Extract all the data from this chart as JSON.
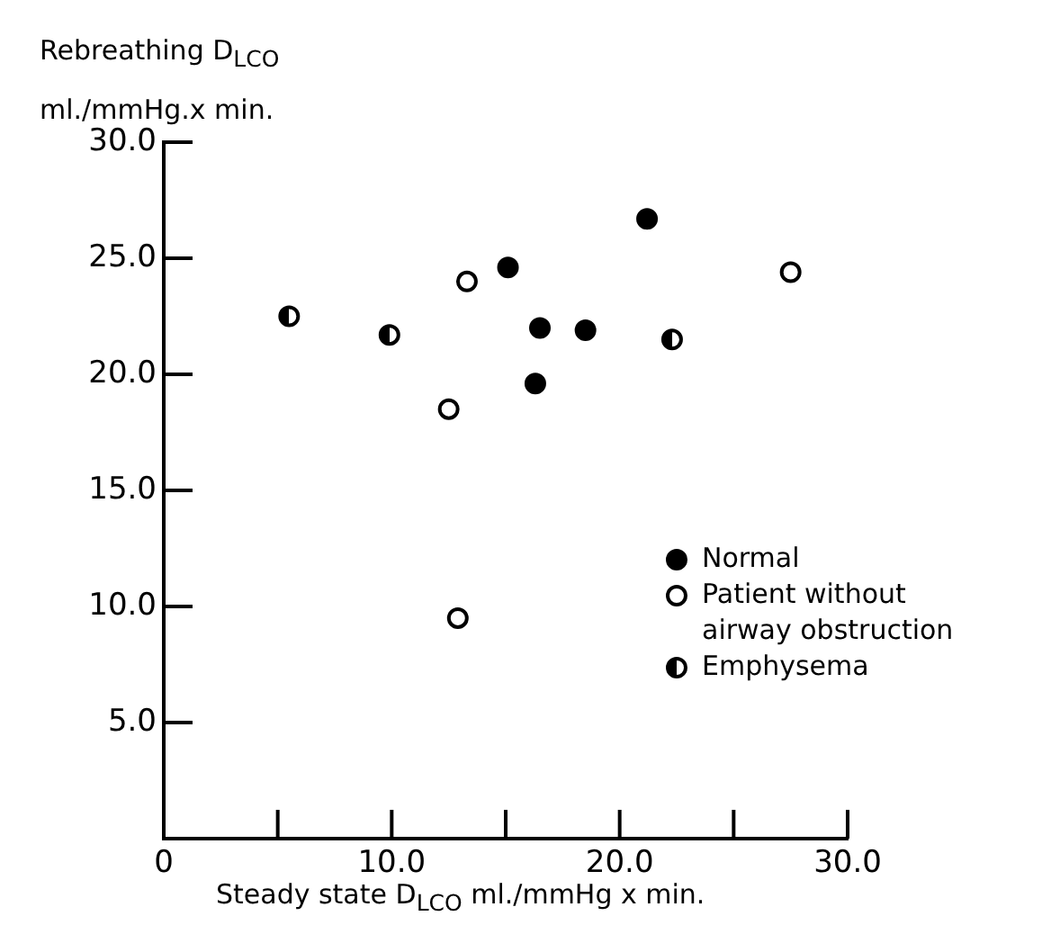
{
  "chart_data": {
    "type": "scatter",
    "xlabel": "Steady state D$_{LCO}$  ml./mmHg  x min.",
    "ylabel": "Rebreathing  D$_{LCO}$ ml./mmHg.x min.",
    "xlim": [
      0,
      30
    ],
    "ylim": [
      0,
      30
    ],
    "xticks": [
      0,
      {
        "value": 5,
        "label": null
      },
      {
        "value": 10,
        "label": "10.0"
      },
      {
        "value": 15,
        "label": null
      },
      {
        "value": 20,
        "label": "20.0"
      },
      {
        "value": 25,
        "label": null
      },
      {
        "value": 30,
        "label": "30.0"
      }
    ],
    "yticks": [
      {
        "value": 5,
        "label": "5.0"
      },
      {
        "value": 10,
        "label": "10.0"
      },
      {
        "value": 15,
        "label": "15.0"
      },
      {
        "value": 20,
        "label": "20.0"
      },
      {
        "value": 25,
        "label": "25.0"
      },
      {
        "value": 30,
        "label": "30.0"
      }
    ],
    "grid": false,
    "legend": "right",
    "marker": "circle",
    "series": [
      {
        "name": "Normal",
        "color": "#000000",
        "x": [
          15.1,
          21.2,
          16.5,
          18.5,
          16.3
        ],
        "values": [
          24.6,
          26.7,
          22.0,
          21.9,
          19.6
        ]
      },
      {
        "name": "Patient without airway obstruction",
        "color": "#000000",
        "x": [
          13.3,
          12.5,
          12.9,
          27.5
        ],
        "values": [
          24.0,
          18.5,
          9.5,
          24.4
        ]
      },
      {
        "name": "Emphysema",
        "color": "#000000",
        "x": [
          5.5,
          9.9,
          22.3
        ],
        "values": [
          22.5,
          21.7,
          21.5
        ]
      }
    ]
  }
}
